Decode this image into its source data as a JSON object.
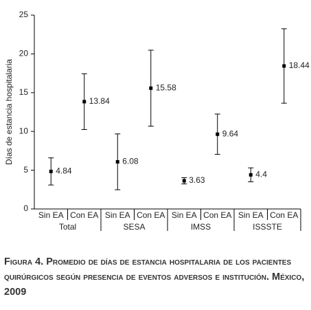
{
  "chart_data": {
    "type": "errorbar",
    "y_label": "Días de estancia hospitalaria",
    "categories": [
      "Sin EA",
      "Con EA",
      "Sin EA",
      "Con EA",
      "Sin EA",
      "Con EA",
      "Sin EA",
      "Con EA"
    ],
    "groups": [
      "Total",
      "SESA",
      "IMSS",
      "ISSSTE"
    ],
    "values": [
      4.84,
      13.84,
      6.08,
      15.58,
      3.63,
      9.64,
      4.4,
      18.44
    ],
    "errors": [
      1.75,
      3.6,
      3.6,
      4.9,
      0.4,
      2.6,
      0.9,
      4.8
    ],
    "color": "#000000",
    "ylim": [
      0,
      25
    ],
    "yticks": [
      0,
      5,
      10,
      15,
      20,
      25
    ]
  },
  "caption": "Figura 4. Promedio de días de estancia hospitalaria de los pacientes quirúrgicos según presencia de eventos adversos e institución. México, 2009"
}
